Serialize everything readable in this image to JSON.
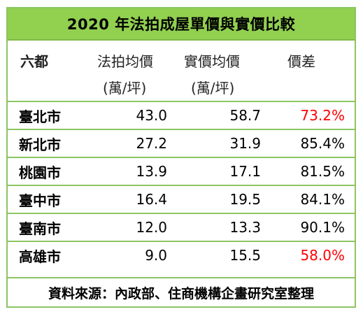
{
  "title": "2020 年法拍成屋單價與實價比較",
  "header": {
    "col0": "六都",
    "col1_line1": "法拍均價",
    "col1_line2": "(萬/坪)",
    "col2_line1": "實價均價",
    "col2_line2": "(萬/坪)",
    "col3": "價差"
  },
  "rows": [
    {
      "city": "臺北市",
      "auction": "43.0",
      "actual": "58.7",
      "diff": "73.2%"
    },
    {
      "city": "新北市",
      "auction": "27.2",
      "actual": "31.9",
      "diff": "85.4%"
    },
    {
      "city": "桃園市",
      "auction": "13.9",
      "actual": "17.1",
      "diff": "81.5%"
    },
    {
      "city": "臺中市",
      "auction": "16.4",
      "actual": "19.5",
      "diff": "84.1%"
    },
    {
      "city": "臺南市",
      "auction": "12.0",
      "actual": "13.3",
      "diff": "90.1%"
    },
    {
      "city": "高雄市",
      "auction": "9.0",
      "actual": "15.5",
      "diff": "58.0%"
    }
  ],
  "footer": "資料來源：內政部、住商機構企畫研究室整理",
  "colors": {
    "accent_green": "#92d050",
    "highlight_red": "#ff0000"
  }
}
